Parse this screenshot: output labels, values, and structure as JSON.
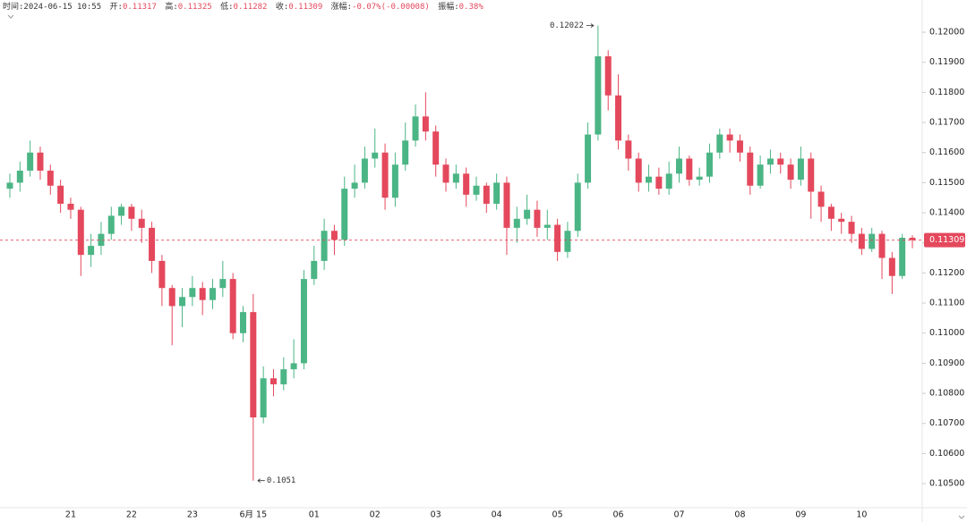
{
  "chart_data": {
    "type": "candlestick",
    "info_labels": [
      "时间:",
      "开:",
      "高:",
      "低:",
      "收:",
      "涨幅:",
      "振幅:"
    ],
    "time": "2024-06-15 10:55",
    "change": "-0.07%(-0.00008)",
    "amplitude": "0.38%",
    "up_color": "#4bb585",
    "down_color": "#e4485c",
    "ylim": [
      0.1042,
      0.12107
    ],
    "yticks": [
      {
        "value": 0.105,
        "label": "0.10500"
      },
      {
        "value": 0.106,
        "label": "0.10600"
      },
      {
        "value": 0.107,
        "label": "0.10700"
      },
      {
        "value": 0.108,
        "label": "0.10800"
      },
      {
        "value": 0.109,
        "label": "0.10900"
      },
      {
        "value": 0.11,
        "label": "0.11000"
      },
      {
        "value": 0.111,
        "label": "0.11100"
      },
      {
        "value": 0.112,
        "label": "0.11200"
      },
      {
        "value": 0.113,
        "label": "0.11300"
      },
      {
        "value": 0.114,
        "label": "0.11400"
      },
      {
        "value": 0.115,
        "label": "0.11500"
      },
      {
        "value": 0.116,
        "label": "0.11600"
      },
      {
        "value": 0.117,
        "label": "0.11700"
      },
      {
        "value": 0.118,
        "label": "0.11800"
      },
      {
        "value": 0.119,
        "label": "0.11900"
      },
      {
        "value": 0.12,
        "label": "0.12000"
      }
    ],
    "grid": false,
    "categories": [
      null,
      null,
      null,
      null,
      null,
      null,
      "21",
      null,
      null,
      null,
      null,
      null,
      "22",
      null,
      null,
      null,
      null,
      null,
      "23",
      null,
      null,
      null,
      null,
      null,
      "6月 15",
      null,
      null,
      null,
      null,
      null,
      "01",
      null,
      null,
      null,
      null,
      null,
      "02",
      null,
      null,
      null,
      null,
      null,
      "03",
      null,
      null,
      null,
      null,
      null,
      "04",
      null,
      null,
      null,
      null,
      null,
      "05",
      null,
      null,
      null,
      null,
      null,
      "06",
      null,
      null,
      null,
      null,
      null,
      "07",
      null,
      null,
      null,
      null,
      null,
      "08",
      null,
      null,
      null,
      null,
      null,
      "09",
      null,
      null,
      null,
      null,
      null,
      "10",
      null,
      null,
      null,
      null,
      null
    ],
    "candles": [
      [
        0.1148,
        0.1153,
        0.1145,
        0.115
      ],
      [
        0.115,
        0.1157,
        0.1147,
        0.1154
      ],
      [
        0.1154,
        0.1164,
        0.1152,
        0.116
      ],
      [
        0.116,
        0.1162,
        0.1151,
        0.1154
      ],
      [
        0.1154,
        0.1156,
        0.1146,
        0.1149
      ],
      [
        0.1149,
        0.1151,
        0.114,
        0.1143
      ],
      [
        0.1143,
        0.1145,
        0.1138,
        0.1141
      ],
      [
        0.1141,
        0.1142,
        0.1119,
        0.1126
      ],
      [
        0.1126,
        0.1133,
        0.1122,
        0.1129
      ],
      [
        0.1129,
        0.1137,
        0.1126,
        0.1133
      ],
      [
        0.1133,
        0.1142,
        0.1131,
        0.1139
      ],
      [
        0.1139,
        0.1143,
        0.1136,
        0.1142
      ],
      [
        0.1142,
        0.1143,
        0.1134,
        0.1138
      ],
      [
        0.1138,
        0.1141,
        0.113,
        0.1135
      ],
      [
        0.1135,
        0.1137,
        0.112,
        0.1124
      ],
      [
        0.1124,
        0.1126,
        0.1109,
        0.1115
      ],
      [
        0.1115,
        0.1116,
        0.1096,
        0.1109
      ],
      [
        0.1109,
        0.1115,
        0.1102,
        0.1112
      ],
      [
        0.1112,
        0.1119,
        0.1109,
        0.1115
      ],
      [
        0.1115,
        0.1117,
        0.1106,
        0.1111
      ],
      [
        0.1111,
        0.1118,
        0.1108,
        0.1115
      ],
      [
        0.1115,
        0.1124,
        0.1112,
        0.1118
      ],
      [
        0.1118,
        0.112,
        0.1098,
        0.11
      ],
      [
        0.11,
        0.1109,
        0.1097,
        0.1107
      ],
      [
        0.1107,
        0.1113,
        0.1051,
        0.1072
      ],
      [
        0.1072,
        0.1089,
        0.107,
        0.1085
      ],
      [
        0.1085,
        0.1088,
        0.1079,
        0.1083
      ],
      [
        0.1083,
        0.1092,
        0.1081,
        0.1088
      ],
      [
        0.1088,
        0.1098,
        0.1085,
        0.109
      ],
      [
        0.109,
        0.1121,
        0.1088,
        0.1118
      ],
      [
        0.1118,
        0.1129,
        0.1116,
        0.1124
      ],
      [
        0.1124,
        0.1138,
        0.1121,
        0.1134
      ],
      [
        0.1134,
        0.1136,
        0.1126,
        0.1131
      ],
      [
        0.1131,
        0.1152,
        0.1129,
        0.1148
      ],
      [
        0.1148,
        0.1156,
        0.1145,
        0.115
      ],
      [
        0.115,
        0.1162,
        0.1148,
        0.1158
      ],
      [
        0.1158,
        0.1168,
        0.1155,
        0.116
      ],
      [
        0.116,
        0.1163,
        0.1141,
        0.1145
      ],
      [
        0.1145,
        0.116,
        0.1142,
        0.1156
      ],
      [
        0.1156,
        0.117,
        0.1154,
        0.1164
      ],
      [
        0.1164,
        0.1176,
        0.1162,
        0.1172
      ],
      [
        0.1172,
        0.118,
        0.1164,
        0.1167
      ],
      [
        0.1167,
        0.1169,
        0.1152,
        0.1156
      ],
      [
        0.1156,
        0.1158,
        0.1147,
        0.115
      ],
      [
        0.115,
        0.1156,
        0.1148,
        0.1153
      ],
      [
        0.1153,
        0.1155,
        0.1142,
        0.1146
      ],
      [
        0.1146,
        0.1152,
        0.1144,
        0.1149
      ],
      [
        0.1149,
        0.115,
        0.114,
        0.1143
      ],
      [
        0.1143,
        0.1153,
        0.1141,
        0.115
      ],
      [
        0.115,
        0.1152,
        0.1126,
        0.1135
      ],
      [
        0.1135,
        0.1142,
        0.113,
        0.1138
      ],
      [
        0.1138,
        0.1146,
        0.1136,
        0.1141
      ],
      [
        0.1141,
        0.1144,
        0.1132,
        0.1135
      ],
      [
        0.1135,
        0.1141,
        0.1131,
        0.1136
      ],
      [
        0.1136,
        0.1138,
        0.1124,
        0.1127
      ],
      [
        0.1127,
        0.1137,
        0.1125,
        0.1134
      ],
      [
        0.1134,
        0.1153,
        0.1132,
        0.115
      ],
      [
        0.115,
        0.117,
        0.1148,
        0.1166
      ],
      [
        0.1166,
        0.12022,
        0.1164,
        0.1192
      ],
      [
        0.1192,
        0.1194,
        0.1174,
        0.1179
      ],
      [
        0.1179,
        0.1186,
        0.1161,
        0.1164
      ],
      [
        0.1164,
        0.1166,
        0.1154,
        0.1158
      ],
      [
        0.1158,
        0.116,
        0.1147,
        0.115
      ],
      [
        0.115,
        0.1156,
        0.1147,
        0.1152
      ],
      [
        0.1152,
        0.1155,
        0.1146,
        0.1148
      ],
      [
        0.1148,
        0.1157,
        0.1146,
        0.1153
      ],
      [
        0.1153,
        0.1162,
        0.115,
        0.1158
      ],
      [
        0.1158,
        0.1159,
        0.1149,
        0.1151
      ],
      [
        0.1151,
        0.1155,
        0.1149,
        0.1152
      ],
      [
        0.1152,
        0.1163,
        0.115,
        0.116
      ],
      [
        0.116,
        0.1168,
        0.1158,
        0.1166
      ],
      [
        0.1166,
        0.1168,
        0.116,
        0.1164
      ],
      [
        0.1164,
        0.1166,
        0.1157,
        0.116
      ],
      [
        0.116,
        0.1162,
        0.1146,
        0.1149
      ],
      [
        0.1149,
        0.1159,
        0.1148,
        0.1156
      ],
      [
        0.1156,
        0.1161,
        0.1153,
        0.1158
      ],
      [
        0.1158,
        0.116,
        0.1153,
        0.1156
      ],
      [
        0.1156,
        0.1158,
        0.1148,
        0.1151
      ],
      [
        0.1151,
        0.1162,
        0.1149,
        0.1158
      ],
      [
        0.1158,
        0.116,
        0.1138,
        0.1147
      ],
      [
        0.1147,
        0.1149,
        0.1137,
        0.1142
      ],
      [
        0.1142,
        0.1143,
        0.1134,
        0.1138
      ],
      [
        0.1138,
        0.114,
        0.1133,
        0.1137
      ],
      [
        0.1137,
        0.1139,
        0.113,
        0.1133
      ],
      [
        0.1133,
        0.1135,
        0.1126,
        0.1128
      ],
      [
        0.1128,
        0.1135,
        0.1127,
        0.1133
      ],
      [
        0.1133,
        0.1134,
        0.1118,
        0.1125
      ],
      [
        0.1125,
        0.1127,
        0.1113,
        0.1119
      ],
      [
        0.1119,
        0.1133,
        0.1118,
        0.11317
      ],
      [
        0.11317,
        0.11325,
        0.11282,
        0.11309
      ]
    ]
  }
}
